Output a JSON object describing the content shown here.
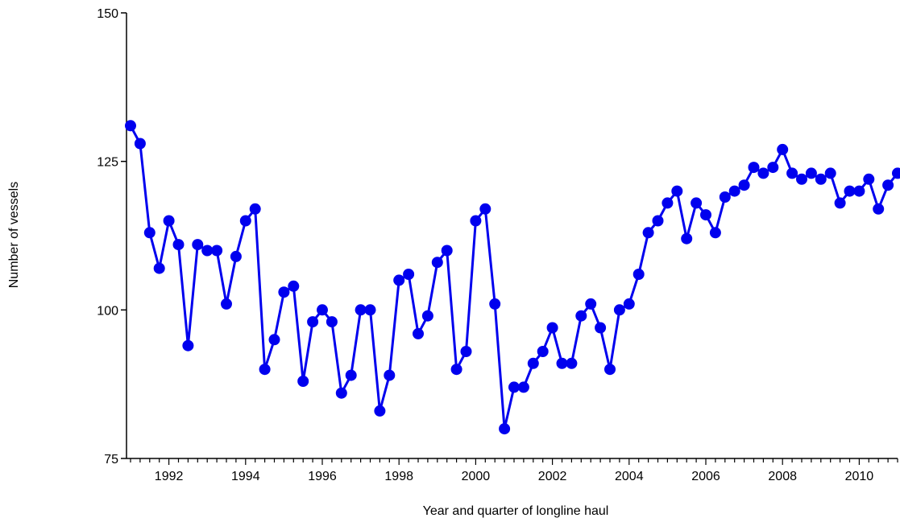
{
  "chart_data": {
    "type": "line",
    "title": "",
    "xlabel": "Year and quarter of longline haul",
    "ylabel": "Number of vessels",
    "ylim": [
      75,
      150
    ],
    "xlim": [
      1991.0,
      2011.0
    ],
    "y_ticks": [
      75,
      100,
      125,
      150
    ],
    "y_tick_labels": [
      "75",
      "100",
      "125",
      "150"
    ],
    "x_major_ticks": [
      1992,
      1994,
      1996,
      1998,
      2000,
      2002,
      2004,
      2006,
      2008,
      2010
    ],
    "x_tick_labels": [
      "1992",
      "1994",
      "1996",
      "1998",
      "2000",
      "2002",
      "2004",
      "2006",
      "2008",
      "2010"
    ],
    "x_minor_step": 0.25,
    "grid": false,
    "legend": "none",
    "line_color": "#0000ee",
    "marker": "filled circle",
    "x": [
      1991.0,
      1991.25,
      1991.5,
      1991.75,
      1992.0,
      1992.25,
      1992.5,
      1992.75,
      1993.0,
      1993.25,
      1993.5,
      1993.75,
      1994.0,
      1994.25,
      1994.5,
      1994.75,
      1995.0,
      1995.25,
      1995.5,
      1995.75,
      1996.0,
      1996.25,
      1996.5,
      1996.75,
      1997.0,
      1997.25,
      1997.5,
      1997.75,
      1998.0,
      1998.25,
      1998.5,
      1998.75,
      1999.0,
      1999.25,
      1999.5,
      1999.75,
      2000.0,
      2000.25,
      2000.5,
      2000.75,
      2001.0,
      2001.25,
      2001.5,
      2001.75,
      2002.0,
      2002.25,
      2002.5,
      2002.75,
      2003.0,
      2003.25,
      2003.5,
      2003.75,
      2004.0,
      2004.25,
      2004.5,
      2004.75,
      2005.0,
      2005.25,
      2005.5,
      2005.75,
      2006.0,
      2006.25,
      2006.5,
      2006.75,
      2007.0,
      2007.25,
      2007.5,
      2007.75,
      2008.0,
      2008.25,
      2008.5,
      2008.75,
      2009.0,
      2009.25,
      2009.5,
      2009.75,
      2010.0,
      2010.25,
      2010.5,
      2010.75,
      2011.0
    ],
    "series": [
      {
        "values": [
          131,
          128,
          113,
          107,
          115,
          111,
          94,
          111,
          110,
          110,
          101,
          109,
          115,
          117,
          90,
          95,
          103,
          104,
          88,
          98,
          100,
          98,
          86,
          89,
          100,
          100,
          83,
          89,
          105,
          106,
          96,
          99,
          108,
          110,
          90,
          93,
          115,
          117,
          101,
          80,
          87,
          87,
          91,
          93,
          97,
          91,
          91,
          99,
          101,
          97,
          90,
          100,
          101,
          106,
          113,
          115,
          118,
          120,
          112,
          118,
          116,
          113,
          119,
          120,
          121,
          124,
          123,
          124,
          127,
          123,
          122,
          123,
          122,
          123,
          118,
          120,
          120,
          122,
          117,
          121,
          123
        ]
      }
    ]
  }
}
